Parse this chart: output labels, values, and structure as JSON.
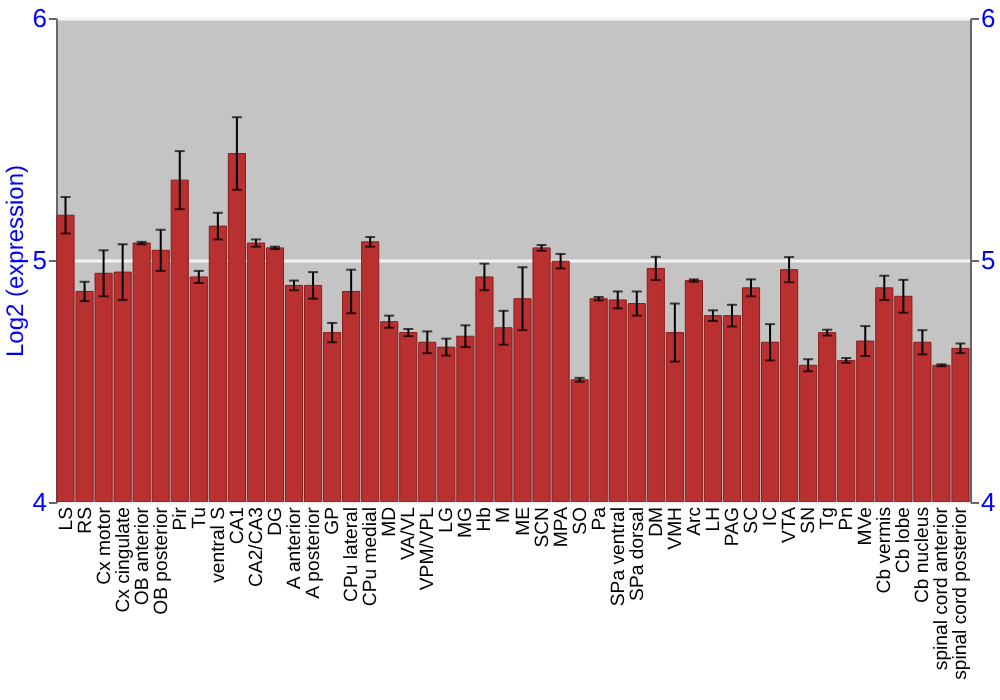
{
  "chart_data": {
    "type": "bar",
    "ylabel": "Log2 (expression)",
    "categories": [
      "LS",
      "RS",
      "Cx motor",
      "Cx cingulate",
      "OB anterior",
      "OB posterior",
      "Pir",
      "Tu",
      "ventral S",
      "CA1",
      "CA2/CA3",
      "DG",
      "A anterior",
      "A posterior",
      "GP",
      "CPu lateral",
      "CPu medial",
      "MD",
      "VA/VL",
      "VPM/VPL",
      "LG",
      "MG",
      "Hb",
      "M",
      "ME",
      "SCN",
      "MPA",
      "SO",
      "Pa",
      "SPa ventral",
      "SPa dorsal",
      "DM",
      "VMH",
      "Arc",
      "LH",
      "PAG",
      "SC",
      "IC",
      "VTA",
      "SN",
      "Tg",
      "Pn",
      "MVe",
      "Cb vermis",
      "Cb lobe",
      "Cb nucleus",
      "spinal cord anterior",
      "spinal cord posterior"
    ],
    "values": [
      5.185,
      4.87,
      4.945,
      4.95,
      5.07,
      5.04,
      5.33,
      4.93,
      5.14,
      5.44,
      5.07,
      5.05,
      4.895,
      4.895,
      4.7,
      4.87,
      5.075,
      4.745,
      4.7,
      4.66,
      4.64,
      4.685,
      4.93,
      4.72,
      4.84,
      5.05,
      4.995,
      4.505,
      4.84,
      4.835,
      4.82,
      4.965,
      4.7,
      4.915,
      4.77,
      4.77,
      4.885,
      4.66,
      4.96,
      4.565,
      4.7,
      4.585,
      4.665,
      4.885,
      4.85,
      4.66,
      4.565,
      4.635
    ],
    "errors": [
      0.075,
      0.04,
      0.095,
      0.115,
      0.005,
      0.085,
      0.12,
      0.025,
      0.055,
      0.15,
      0.015,
      0.005,
      0.02,
      0.055,
      0.04,
      0.09,
      0.02,
      0.025,
      0.015,
      0.045,
      0.035,
      0.045,
      0.055,
      0.07,
      0.13,
      0.012,
      0.03,
      0.008,
      0.007,
      0.035,
      0.05,
      0.048,
      0.12,
      0.005,
      0.022,
      0.045,
      0.035,
      0.075,
      0.052,
      0.025,
      0.012,
      0.01,
      0.062,
      0.05,
      0.068,
      0.05,
      0.004,
      0.02
    ],
    "color": "#b83030",
    "ylim": [
      4,
      6
    ],
    "yticks": [
      4,
      5,
      6
    ],
    "y2lim": [
      4,
      6
    ],
    "y2ticks": [
      4,
      5,
      6
    ],
    "grid": "y"
  }
}
